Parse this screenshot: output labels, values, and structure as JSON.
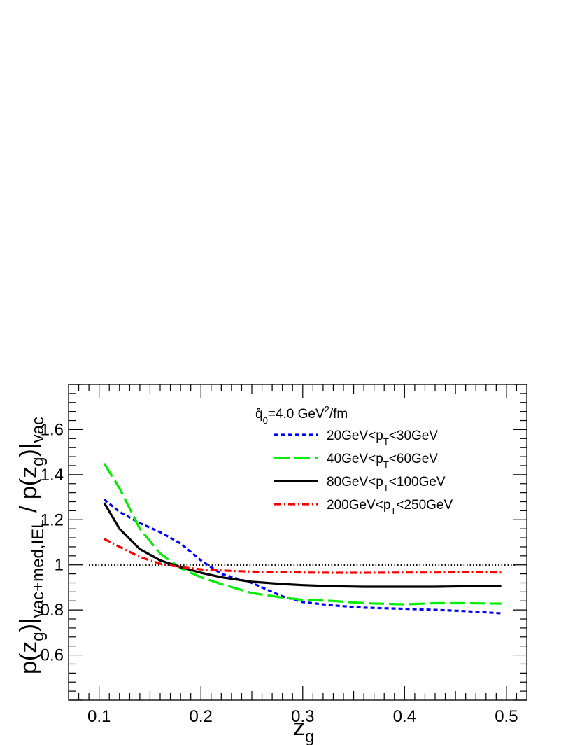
{
  "chart_data": {
    "type": "line",
    "xlabel": {
      "base": "z",
      "sub": "g"
    },
    "ylabel": {
      "num_base": "p(z",
      "num_sub": "g",
      "num_close": ")|",
      "num_region": "vac+med,IEL",
      "sep": " / ",
      "den_base": "p(z",
      "den_sub": "g",
      "den_close": ")|",
      "den_region": "vac"
    },
    "xlim": [
      0.07,
      0.52
    ],
    "ylim": [
      0.4,
      1.8
    ],
    "x_ticks": [
      "0.1",
      "0.2",
      "0.3",
      "0.4",
      "0.5"
    ],
    "y_ticks": [
      "0.6",
      "0.8",
      "1",
      "1.2",
      "1.4",
      "1.6"
    ],
    "reference_line": 1.0,
    "legend_header": {
      "prefix": "q̂",
      "sub": "0",
      "middle": "=4.0 GeV",
      "sup": "2",
      "suffix": "/fm"
    },
    "series": [
      {
        "name": "20GeV<pT<30GeV",
        "label": {
          "a": "20GeV<p",
          "sub": "T",
          "b": "<30GeV"
        },
        "color": "#0000ff",
        "dash": "6,4",
        "x": [
          0.105,
          0.12,
          0.14,
          0.16,
          0.18,
          0.2,
          0.22,
          0.25,
          0.28,
          0.3,
          0.33,
          0.36,
          0.4,
          0.43,
          0.46,
          0.495
        ],
        "y": [
          1.29,
          1.235,
          1.185,
          1.145,
          1.095,
          1.02,
          0.96,
          0.92,
          0.86,
          0.835,
          0.82,
          0.81,
          0.805,
          0.8,
          0.795,
          0.785
        ]
      },
      {
        "name": "40GeV<pT<60GeV",
        "label": {
          "a": "40GeV<p",
          "sub": "T",
          "b": "<60GeV"
        },
        "color": "#00ee00",
        "dash": "22,7",
        "x": [
          0.105,
          0.12,
          0.14,
          0.16,
          0.18,
          0.2,
          0.22,
          0.25,
          0.28,
          0.3,
          0.33,
          0.36,
          0.4,
          0.43,
          0.46,
          0.495
        ],
        "y": [
          1.45,
          1.34,
          1.16,
          1.05,
          0.985,
          0.945,
          0.915,
          0.875,
          0.855,
          0.845,
          0.84,
          0.83,
          0.825,
          0.83,
          0.83,
          0.828
        ]
      },
      {
        "name": "80GeV<pT<100GeV",
        "label": {
          "a": "80GeV<p",
          "sub": "T",
          "b": "<100GeV"
        },
        "color": "#000000",
        "dash": "",
        "x": [
          0.105,
          0.12,
          0.14,
          0.16,
          0.18,
          0.2,
          0.22,
          0.25,
          0.28,
          0.3,
          0.33,
          0.36,
          0.4,
          0.43,
          0.46,
          0.495
        ],
        "y": [
          1.275,
          1.16,
          1.07,
          1.02,
          0.99,
          0.965,
          0.945,
          0.925,
          0.915,
          0.91,
          0.905,
          0.903,
          0.903,
          0.903,
          0.905,
          0.905
        ]
      },
      {
        "name": "200GeV<pT<250GeV",
        "label": {
          "a": "200GeV<p",
          "sub": "T",
          "b": "<250GeV"
        },
        "color": "#ff0000",
        "dash": "10,4,2,4",
        "x": [
          0.105,
          0.12,
          0.14,
          0.16,
          0.18,
          0.2,
          0.22,
          0.25,
          0.28,
          0.3,
          0.33,
          0.36,
          0.4,
          0.43,
          0.46,
          0.495
        ],
        "y": [
          1.115,
          1.08,
          1.035,
          1.005,
          0.99,
          0.98,
          0.975,
          0.97,
          0.968,
          0.966,
          0.965,
          0.965,
          0.966,
          0.966,
          0.967,
          0.966
        ]
      }
    ]
  }
}
